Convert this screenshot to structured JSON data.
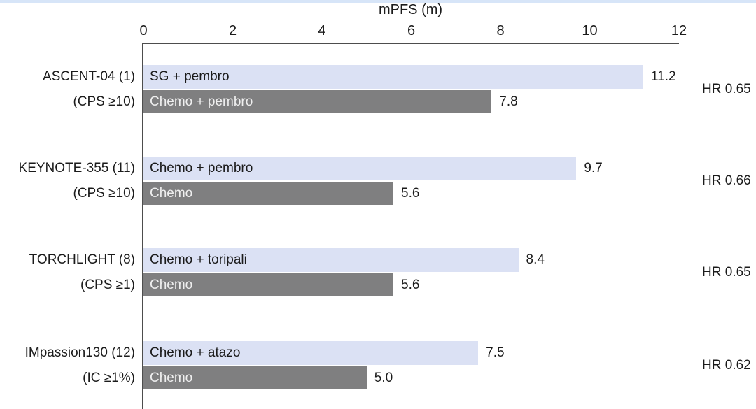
{
  "chart_data": {
    "type": "bar",
    "orientation": "horizontal",
    "title": "mPFS (m)",
    "xlabel": "mPFS (m)",
    "xlim": [
      0,
      12
    ],
    "xticks": [
      0,
      2,
      4,
      6,
      8,
      10,
      12
    ],
    "grid": false,
    "legend": "labels drawn inside bars",
    "colors": {
      "experimental_fill": "#dbe1f4",
      "experimental_text": "#1b1b1b",
      "control_fill": "#7f7f80",
      "control_text": "#efefef",
      "axis_line": "#4d4d4d",
      "top_band": "#d7e5f8"
    },
    "groups": [
      {
        "trial": "ASCENT-04 (1)",
        "subgroup": "(CPS ≥10)",
        "hr": "HR 0.65",
        "bars": [
          {
            "label": "SG + pembro",
            "value": 11.2,
            "value_label": "11.2",
            "type": "experimental"
          },
          {
            "label": "Chemo + pembro",
            "value": 7.8,
            "value_label": "7.8",
            "type": "control"
          }
        ]
      },
      {
        "trial": "KEYNOTE-355 (11)",
        "subgroup": "(CPS ≥10)",
        "hr": "HR 0.66",
        "bars": [
          {
            "label": "Chemo + pembro",
            "value": 9.7,
            "value_label": "9.7",
            "type": "experimental"
          },
          {
            "label": "Chemo",
            "value": 5.6,
            "value_label": "5.6",
            "type": "control"
          }
        ]
      },
      {
        "trial": "TORCHLIGHT (8)",
        "subgroup": "(CPS ≥1)",
        "hr": "HR 0.65",
        "bars": [
          {
            "label": "Chemo + toripali",
            "value": 8.4,
            "value_label": "8.4",
            "type": "experimental"
          },
          {
            "label": "Chemo",
            "value": 5.6,
            "value_label": "5.6",
            "type": "control"
          }
        ]
      },
      {
        "trial": "IMpassion130 (12)",
        "subgroup": "(IC ≥1%)",
        "hr": "HR 0.62",
        "bars": [
          {
            "label": "Chemo + atazo",
            "value": 7.5,
            "value_label": "7.5",
            "type": "experimental"
          },
          {
            "label": "Chemo",
            "value": 5.0,
            "value_label": "5.0",
            "type": "control"
          }
        ]
      }
    ]
  }
}
